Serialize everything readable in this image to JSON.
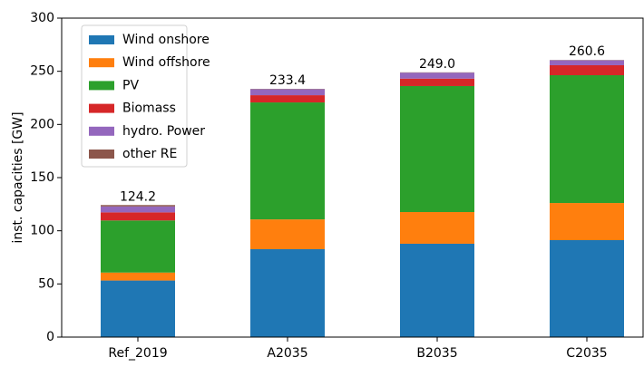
{
  "chart_data": {
    "type": "stacked_bar",
    "ylabel": "inst. capacities [GW]",
    "categories": [
      "Ref_2019",
      "A2035",
      "B2035",
      "C2035"
    ],
    "series": [
      {
        "name": "Wind onshore",
        "color": "#1f77b4",
        "values": [
          53.2,
          82.7,
          87.8,
          91.2
        ]
      },
      {
        "name": "Wind offshore",
        "color": "#ff7f0e",
        "values": [
          7.5,
          28,
          29.8,
          34.9
        ]
      },
      {
        "name": "PV",
        "color": "#2ca02c",
        "values": [
          49,
          110,
          118.5,
          120.2
        ]
      },
      {
        "name": "Biomass",
        "color": "#d62728",
        "values": [
          7.6,
          6.8,
          7,
          9.4
        ]
      },
      {
        "name": "hydro. Power",
        "color": "#9467bd",
        "values": [
          5.6,
          5.6,
          5.6,
          4.6
        ]
      },
      {
        "name": "other RE",
        "color": "#8c564b",
        "values": [
          1.3,
          0.3,
          0.3,
          0.3
        ]
      }
    ],
    "totals": [
      124.2,
      233.4,
      249,
      260.6
    ],
    "total_labels": [
      "124.2",
      "233.4",
      "249.0",
      "260.6"
    ],
    "ylim": [
      0,
      300
    ],
    "yticks": [
      0,
      50,
      100,
      150,
      200,
      250,
      300
    ],
    "legend": "upper left"
  }
}
